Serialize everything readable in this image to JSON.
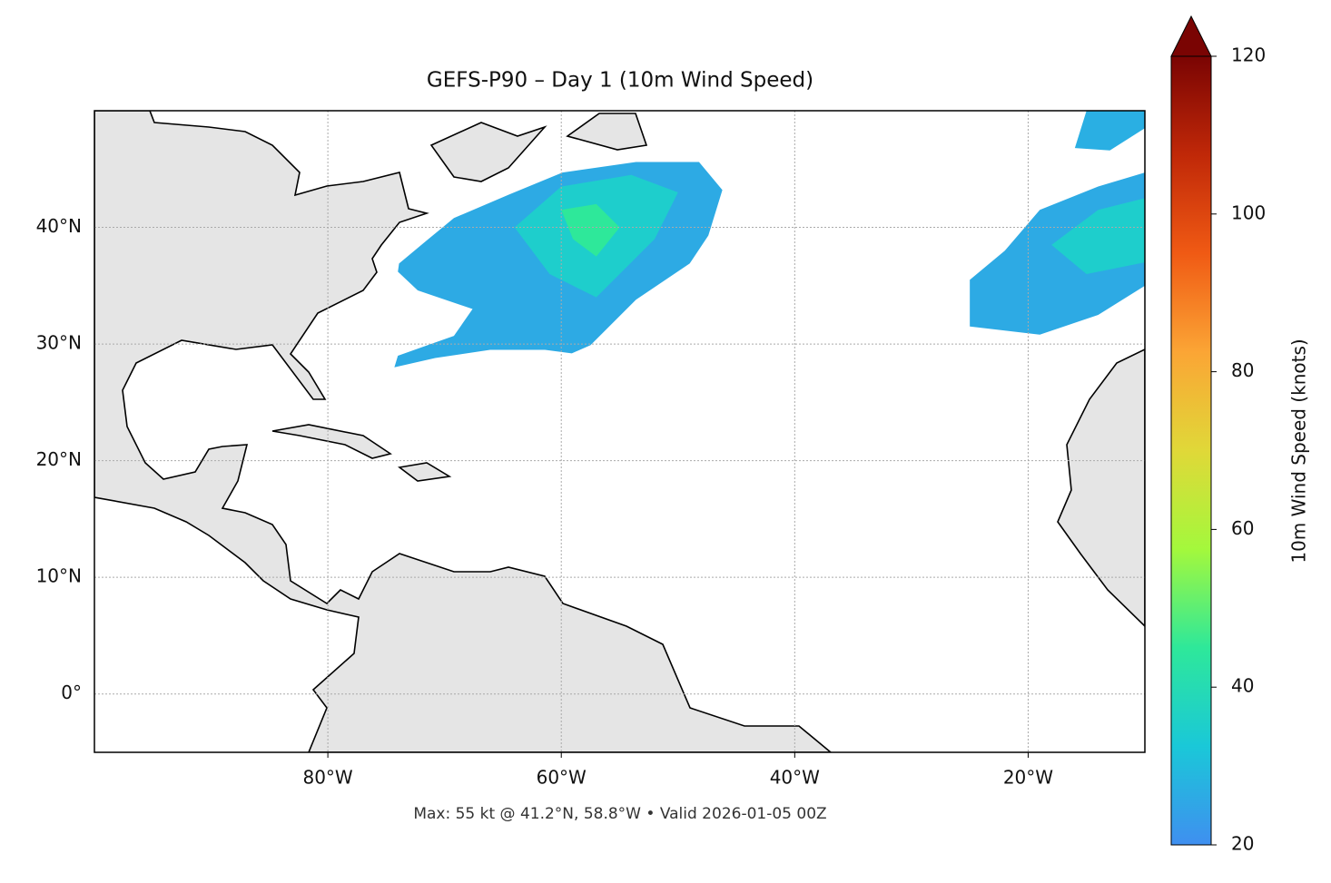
{
  "chart_data": {
    "type": "map",
    "title": "GEFS-P90 – Day 1 (10m Wind Speed)",
    "note": "Max: 55 kt @ 41.2°N, 58.8°W • Valid 2026-01-05 00Z",
    "xlim": [
      -100,
      -10
    ],
    "ylim": [
      -5,
      50
    ],
    "xticks": [
      {
        "value": -80,
        "label": "80°W"
      },
      {
        "value": -60,
        "label": "60°W"
      },
      {
        "value": -40,
        "label": "40°W"
      },
      {
        "value": -20,
        "label": "20°W"
      }
    ],
    "yticks": [
      {
        "value": 0,
        "label": "0°"
      },
      {
        "value": 10,
        "label": "10°N"
      },
      {
        "value": 20,
        "label": "20°N"
      },
      {
        "value": 30,
        "label": "30°N"
      },
      {
        "value": 40,
        "label": "40°N"
      }
    ],
    "grid": true,
    "areas": [
      {
        "speed": 26,
        "lon": [
          -73.9,
          -71.5,
          -69.2,
          -64.5,
          -59.9,
          -53.6,
          -48.2,
          -46.2,
          -47.4,
          -49.0,
          -53.6,
          -57.5,
          -59.1,
          -61.4,
          -66.1,
          -70.8,
          -74.3,
          -74.0,
          -69.2,
          -67.6,
          -72.3,
          -74.0
        ],
        "lat": [
          36.9,
          38.9,
          40.8,
          42.8,
          44.7,
          45.6,
          45.6,
          43.2,
          39.3,
          36.9,
          33.8,
          29.9,
          29.2,
          29.5,
          29.5,
          28.8,
          28.0,
          29.0,
          30.7,
          33.0,
          34.6,
          36.2
        ]
      },
      {
        "speed": 35,
        "lon": [
          -64,
          -60,
          -54,
          -50,
          -52,
          -57,
          -61
        ],
        "lat": [
          40,
          43.5,
          44.5,
          43,
          39,
          34,
          36
        ]
      },
      {
        "speed": 45,
        "lon": [
          -60,
          -57,
          -55,
          -57,
          -59
        ],
        "lat": [
          41.5,
          42,
          40,
          37.5,
          39
        ]
      },
      {
        "speed": 26,
        "lon": [
          -25,
          -22,
          -19,
          -14,
          -10,
          -10,
          -14,
          -19,
          -25
        ],
        "lat": [
          35.5,
          38,
          41.5,
          43.5,
          44.7,
          35,
          32.5,
          30.8,
          31.5
        ]
      },
      {
        "speed": 35,
        "lon": [
          -18,
          -14,
          -10,
          -10,
          -15
        ],
        "lat": [
          38.5,
          41.5,
          42.5,
          37,
          36
        ]
      },
      {
        "speed": 27,
        "lon": [
          -15,
          -10,
          -10,
          -13,
          -16
        ],
        "lat": [
          50,
          50,
          48.5,
          46.6,
          46.8
        ]
      }
    ],
    "colorbar": {
      "label": "10m Wind Speed (knots)",
      "lim": [
        20,
        120
      ],
      "ticks": [
        20,
        40,
        60,
        80,
        100,
        120
      ],
      "colors": [
        "#3f8ff0",
        "#1ac8d8",
        "#2ee89a",
        "#a4f83c",
        "#e0d838",
        "#fba535",
        "#f05a14",
        "#c02808",
        "#7a0403"
      ]
    }
  }
}
